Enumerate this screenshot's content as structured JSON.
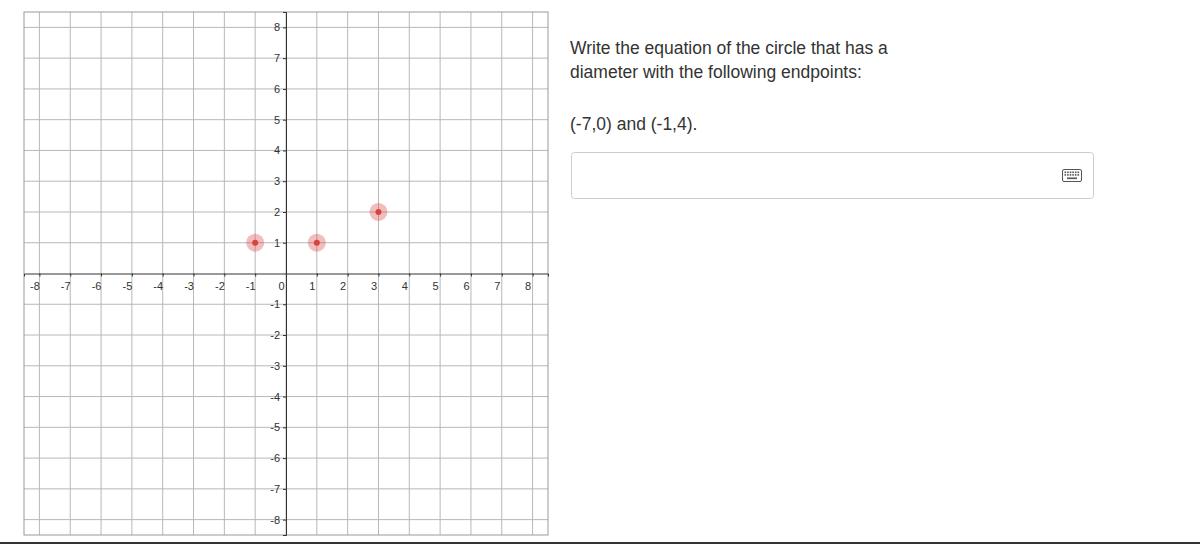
{
  "chart_data": {
    "type": "scatter",
    "annotations": [
      "Write the equation of the circle that has a",
      "diameter with the following endpoints:",
      "(-7,0) and (-1,4)."
    ],
    "x": [
      -1,
      1,
      3
    ],
    "values": [
      1,
      1,
      2
    ],
    "color": "#d9433e",
    "marker": "circle",
    "xlim": [
      -8.5,
      8.5
    ],
    "xticks": [
      -8,
      -7,
      -6,
      -5,
      -4,
      -3,
      -2,
      -1,
      0,
      1,
      2,
      3,
      4,
      5,
      6,
      7,
      8
    ],
    "ylim": [
      -8.5,
      8.5
    ],
    "yticks": [
      -8,
      -7,
      -6,
      -5,
      -4,
      -3,
      -2,
      -1,
      1,
      2,
      3,
      4,
      5,
      6,
      7,
      8
    ],
    "grid": true
  }
}
